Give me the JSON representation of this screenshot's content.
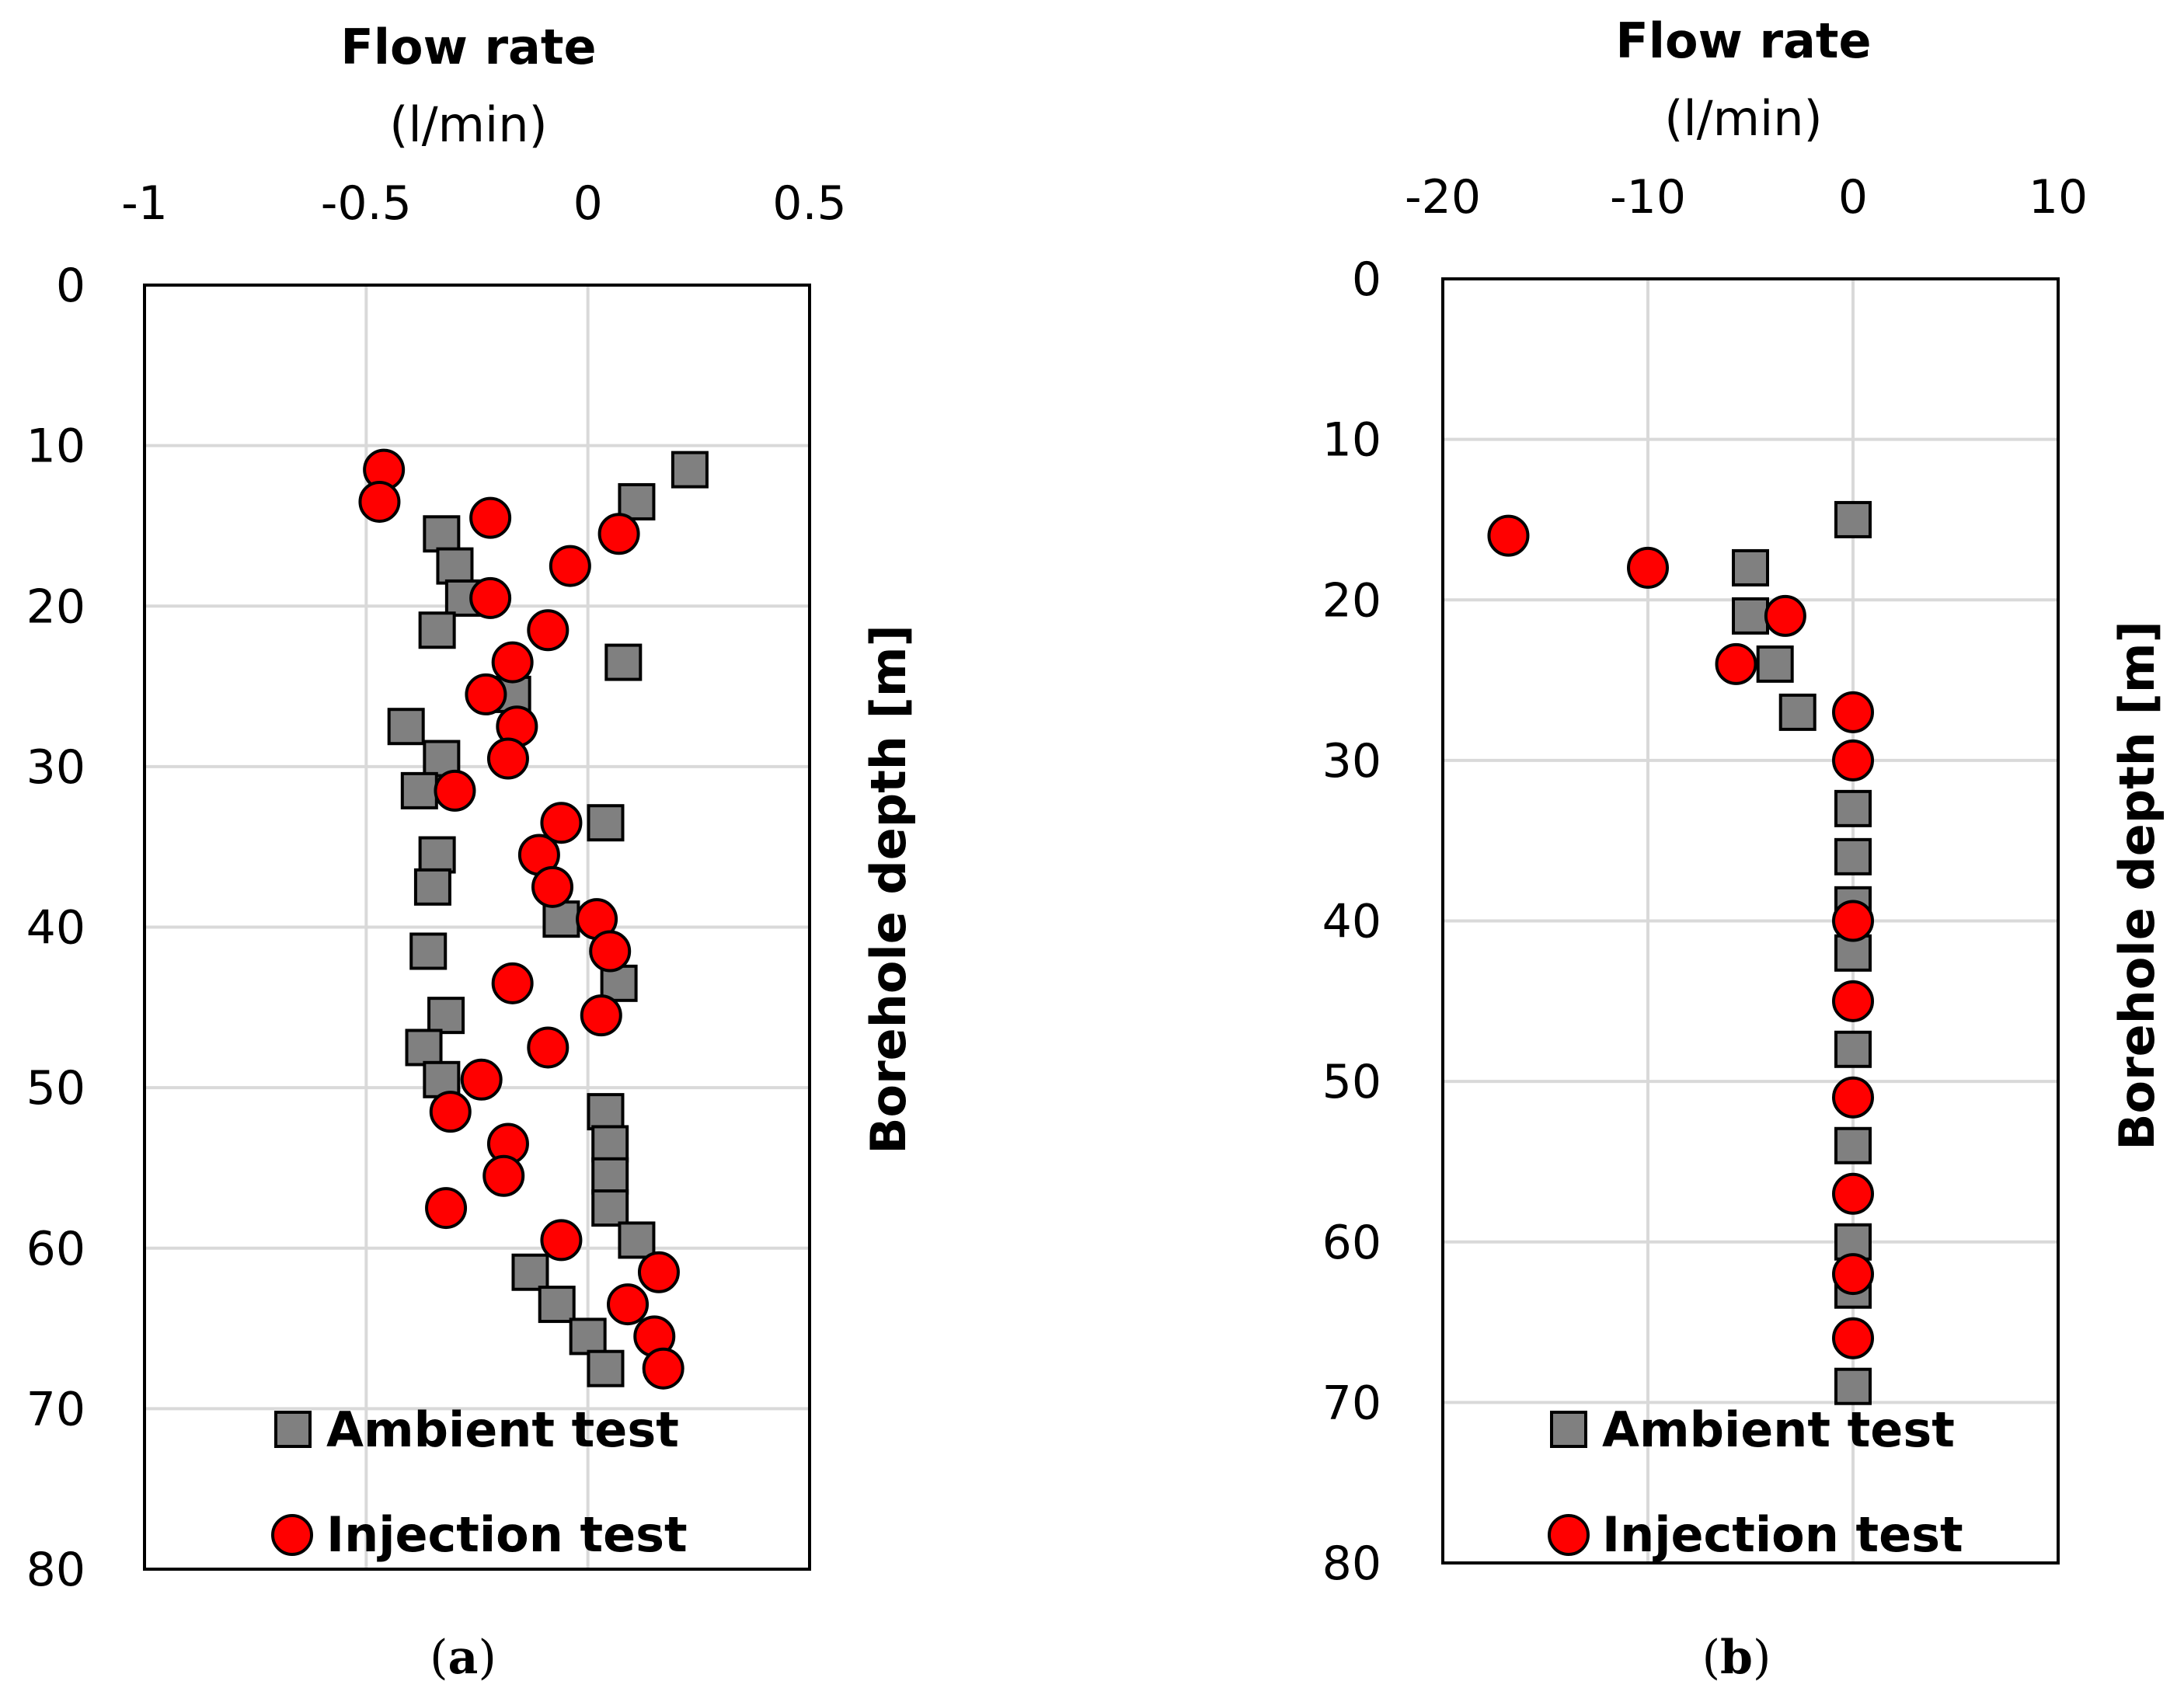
{
  "chart_data": [
    {
      "type": "scatter",
      "panel_label": "a",
      "xlabel": "Flow rate",
      "xunit": "(l/min)",
      "ylabel": "Borehole depth [m]",
      "xlim": [
        -1,
        0.5
      ],
      "ylim": [
        0,
        80
      ],
      "y_inverted": true,
      "x_axis_position": "top",
      "y_label_side": "right",
      "grid": true,
      "xticks": [
        -1,
        -0.5,
        0,
        0.5
      ],
      "xtick_labels": [
        "-1",
        "-0.5",
        "0",
        "0.5"
      ],
      "yticks": [
        0,
        10,
        20,
        30,
        40,
        50,
        60,
        70,
        80
      ],
      "ytick_labels": [
        "0",
        "10",
        "20",
        "30",
        "40",
        "50",
        "60",
        "70",
        "80"
      ],
      "legend_placement": "bottom-center",
      "series": [
        {
          "name": "Ambient test",
          "marker": "square",
          "color": "#808080",
          "points": [
            {
              "x": 0.23,
              "y": 11.5
            },
            {
              "x": 0.11,
              "y": 13.5
            },
            {
              "x": -0.33,
              "y": 15.5
            },
            {
              "x": -0.3,
              "y": 17.5
            },
            {
              "x": -0.28,
              "y": 19.5
            },
            {
              "x": -0.34,
              "y": 21.5
            },
            {
              "x": 0.08,
              "y": 23.5
            },
            {
              "x": -0.17,
              "y": 25.5
            },
            {
              "x": -0.41,
              "y": 27.5
            },
            {
              "x": -0.33,
              "y": 29.5
            },
            {
              "x": -0.38,
              "y": 31.5
            },
            {
              "x": 0.04,
              "y": 33.5
            },
            {
              "x": -0.34,
              "y": 35.5
            },
            {
              "x": -0.35,
              "y": 37.5
            },
            {
              "x": -0.06,
              "y": 39.5
            },
            {
              "x": -0.36,
              "y": 41.5
            },
            {
              "x": 0.07,
              "y": 43.5
            },
            {
              "x": -0.32,
              "y": 45.5
            },
            {
              "x": -0.37,
              "y": 47.5
            },
            {
              "x": -0.33,
              "y": 49.5
            },
            {
              "x": 0.04,
              "y": 51.5
            },
            {
              "x": 0.05,
              "y": 53.5
            },
            {
              "x": 0.05,
              "y": 55.5
            },
            {
              "x": 0.05,
              "y": 57.5
            },
            {
              "x": 0.11,
              "y": 59.5
            },
            {
              "x": -0.13,
              "y": 61.5
            },
            {
              "x": -0.07,
              "y": 63.5
            },
            {
              "x": 0.0,
              "y": 65.5
            },
            {
              "x": 0.04,
              "y": 67.5
            }
          ]
        },
        {
          "name": "Injection test",
          "marker": "circle",
          "color": "#ff0000",
          "points": [
            {
              "x": -0.46,
              "y": 11.5
            },
            {
              "x": -0.47,
              "y": 13.5
            },
            {
              "x": -0.22,
              "y": 14.5
            },
            {
              "x": 0.07,
              "y": 15.5
            },
            {
              "x": -0.04,
              "y": 17.5
            },
            {
              "x": -0.22,
              "y": 19.5
            },
            {
              "x": -0.09,
              "y": 21.5
            },
            {
              "x": -0.17,
              "y": 23.5
            },
            {
              "x": -0.23,
              "y": 25.5
            },
            {
              "x": -0.16,
              "y": 27.5
            },
            {
              "x": -0.18,
              "y": 29.5
            },
            {
              "x": -0.3,
              "y": 31.5
            },
            {
              "x": -0.06,
              "y": 33.5
            },
            {
              "x": -0.11,
              "y": 35.5
            },
            {
              "x": -0.08,
              "y": 37.5
            },
            {
              "x": 0.02,
              "y": 39.5
            },
            {
              "x": 0.05,
              "y": 41.5
            },
            {
              "x": -0.17,
              "y": 43.5
            },
            {
              "x": 0.03,
              "y": 45.5
            },
            {
              "x": -0.09,
              "y": 47.5
            },
            {
              "x": -0.24,
              "y": 49.5
            },
            {
              "x": -0.31,
              "y": 51.5
            },
            {
              "x": -0.18,
              "y": 53.5
            },
            {
              "x": -0.19,
              "y": 55.5
            },
            {
              "x": -0.32,
              "y": 57.5
            },
            {
              "x": -0.06,
              "y": 59.5
            },
            {
              "x": 0.16,
              "y": 61.5
            },
            {
              "x": 0.09,
              "y": 63.5
            },
            {
              "x": 0.15,
              "y": 65.5
            },
            {
              "x": 0.17,
              "y": 67.5
            }
          ]
        }
      ]
    },
    {
      "type": "scatter",
      "panel_label": "b",
      "xlabel": "Flow rate",
      "xunit": "(l/min)",
      "ylabel": "Borehole depth [m]",
      "xlim": [
        -20,
        10
      ],
      "ylim": [
        0,
        80
      ],
      "y_inverted": true,
      "x_axis_position": "top",
      "y_label_side": "right",
      "grid": true,
      "xticks": [
        -20,
        -10,
        0,
        10
      ],
      "xtick_labels": [
        "-20",
        "-10",
        "0",
        "10"
      ],
      "yticks": [
        0,
        10,
        20,
        30,
        40,
        50,
        60,
        70,
        80
      ],
      "ytick_labels": [
        "0",
        "10",
        "20",
        "30",
        "40",
        "50",
        "60",
        "70",
        "80"
      ],
      "legend_placement": "bottom-center",
      "series": [
        {
          "name": "Ambient test",
          "marker": "square",
          "color": "#808080",
          "points": [
            {
              "x": 0.0,
              "y": 15
            },
            {
              "x": -5.0,
              "y": 18
            },
            {
              "x": -5.0,
              "y": 21
            },
            {
              "x": -3.8,
              "y": 24
            },
            {
              "x": -2.7,
              "y": 27
            },
            {
              "x": 0.0,
              "y": 33
            },
            {
              "x": 0.0,
              "y": 36
            },
            {
              "x": 0.0,
              "y": 39
            },
            {
              "x": 0.0,
              "y": 42
            },
            {
              "x": 0.0,
              "y": 48
            },
            {
              "x": 0.0,
              "y": 54
            },
            {
              "x": 0.0,
              "y": 60
            },
            {
              "x": 0.0,
              "y": 63
            },
            {
              "x": 0.0,
              "y": 69
            }
          ]
        },
        {
          "name": "Injection test",
          "marker": "circle",
          "color": "#ff0000",
          "points": [
            {
              "x": -16.8,
              "y": 16
            },
            {
              "x": -10.0,
              "y": 18
            },
            {
              "x": -3.3,
              "y": 21
            },
            {
              "x": -5.7,
              "y": 24
            },
            {
              "x": 0.0,
              "y": 27
            },
            {
              "x": 0.0,
              "y": 30
            },
            {
              "x": 0.0,
              "y": 40
            },
            {
              "x": 0.0,
              "y": 45
            },
            {
              "x": 0.0,
              "y": 51
            },
            {
              "x": 0.0,
              "y": 57
            },
            {
              "x": 0.0,
              "y": 62
            },
            {
              "x": 0.0,
              "y": 66
            }
          ]
        }
      ]
    }
  ]
}
